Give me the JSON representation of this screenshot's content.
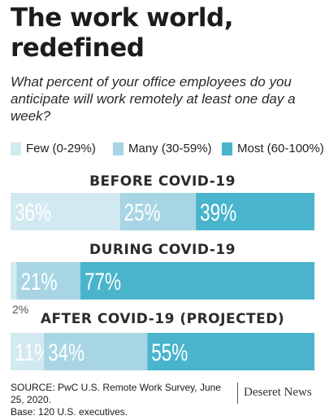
{
  "title": "The work world, redefined",
  "subtitle": "What percent of your office employees do you anticipate will work remotely at least one day a week?",
  "colors": {
    "few": "#d3e9f1",
    "many": "#a7d5e3",
    "most": "#49b4cc",
    "label": "#ffffff"
  },
  "chart_data": {
    "type": "bar",
    "stacked": true,
    "orientation": "horizontal",
    "unit": "%",
    "categories": [
      "BEFORE COVID-19",
      "DURING COVID-19",
      "AFTER COVID-19 (PROJECTED)"
    ],
    "series": [
      {
        "name": "Few (0-29%)",
        "values": [
          36,
          2,
          11
        ]
      },
      {
        "name": "Many (30-59%)",
        "values": [
          25,
          21,
          34
        ]
      },
      {
        "name": "Most (60-100%)",
        "values": [
          39,
          77,
          55
        ]
      }
    ],
    "legend_position": "top"
  },
  "source": "SOURCE: PwC U.S. Remote Work Survey, June 25, 2020.",
  "base": "Base: 120 U.S. executives.",
  "brand": "Deseret News"
}
